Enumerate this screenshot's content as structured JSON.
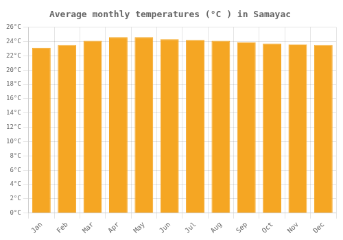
{
  "chart_data": {
    "type": "bar",
    "title": "Average monthly temperatures (°C ) in Samayac",
    "categories": [
      "Jan",
      "Feb",
      "Mar",
      "Apr",
      "May",
      "Jun",
      "Jul",
      "Aug",
      "Sep",
      "Oct",
      "Nov",
      "Dec"
    ],
    "values": [
      23.1,
      23.5,
      24.1,
      24.6,
      24.6,
      24.3,
      24.2,
      24.1,
      23.9,
      23.7,
      23.6,
      23.5
    ],
    "color": "#F5A623",
    "ylim": [
      0,
      26
    ],
    "yticks": [
      {
        "value": 0,
        "label": "0°C"
      },
      {
        "value": 2,
        "label": "2°C"
      },
      {
        "value": 4,
        "label": "4°C"
      },
      {
        "value": 6,
        "label": "6°C"
      },
      {
        "value": 8,
        "label": "8°C"
      },
      {
        "value": 10,
        "label": "10°C"
      },
      {
        "value": 12,
        "label": "12°C"
      },
      {
        "value": 14,
        "label": "14°C"
      },
      {
        "value": 16,
        "label": "16°C"
      },
      {
        "value": 18,
        "label": "18°C"
      },
      {
        "value": 20,
        "label": "20°C"
      },
      {
        "value": 22,
        "label": "22°C"
      },
      {
        "value": 24,
        "label": "24°C"
      },
      {
        "value": 26,
        "label": "26°C"
      }
    ],
    "grid": true
  }
}
